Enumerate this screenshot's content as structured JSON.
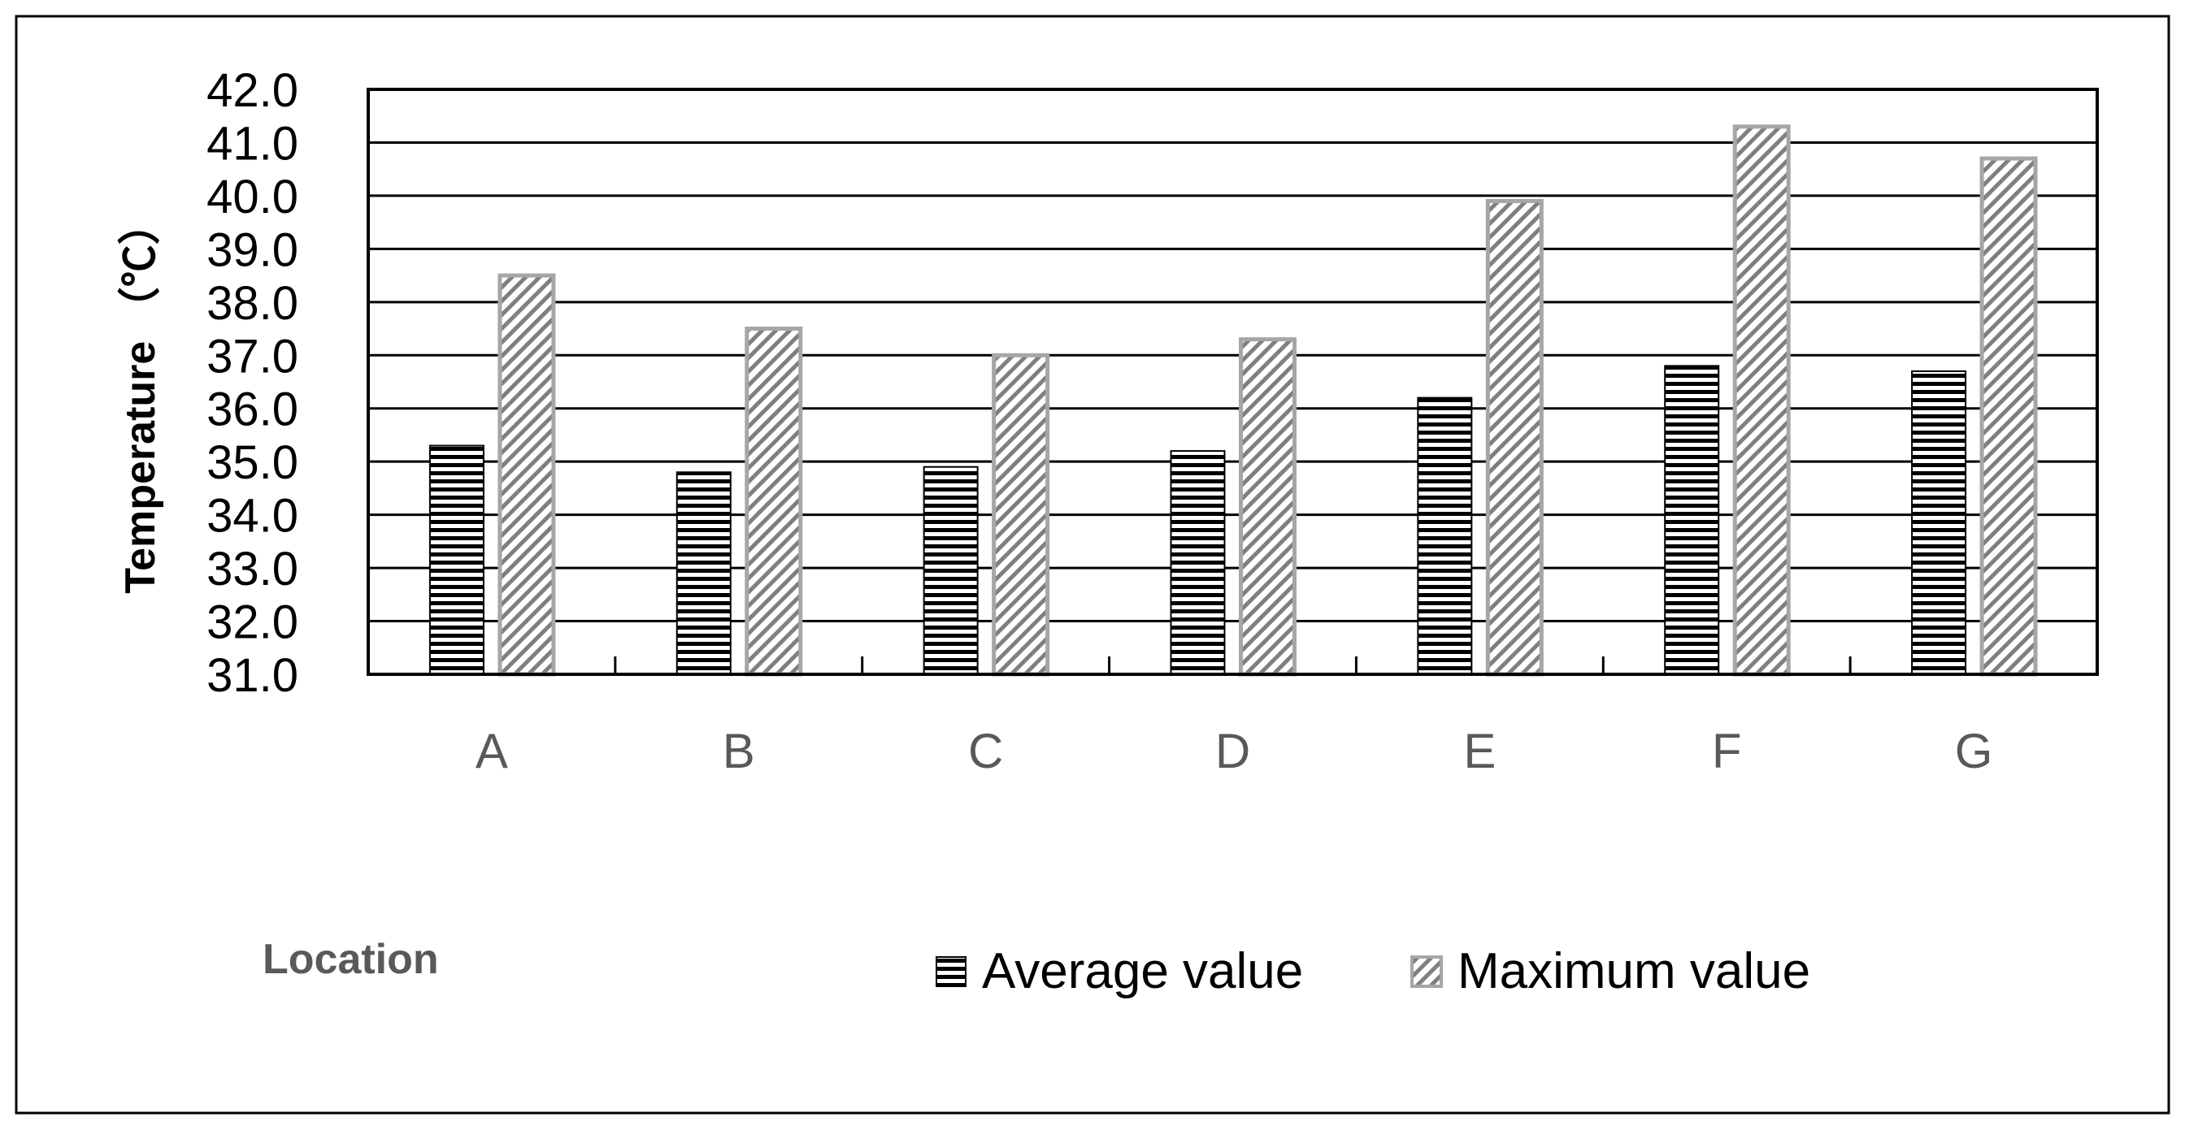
{
  "chart_data": {
    "type": "bar",
    "categories": [
      "A",
      "B",
      "C",
      "D",
      "E",
      "F",
      "G"
    ],
    "series": [
      {
        "name": "Average value",
        "values": [
          35.3,
          34.8,
          34.9,
          35.2,
          36.2,
          36.8,
          36.7
        ],
        "pattern": "horizontal-stripes",
        "color": "#000000"
      },
      {
        "name": "Maximum value",
        "values": [
          38.5,
          37.5,
          37.0,
          37.3,
          39.9,
          41.3,
          40.7
        ],
        "pattern": "diagonal-hatch",
        "color": "#a6a6a6"
      }
    ],
    "ylabel": "Temperature （℃）",
    "xlabel": "Location",
    "ylim": [
      31.0,
      42.0
    ],
    "yticks": [
      "31.0",
      "32.0",
      "33.0",
      "34.0",
      "35.0",
      "36.0",
      "37.0",
      "38.0",
      "39.0",
      "40.0",
      "41.0",
      "42.0"
    ],
    "grid": true,
    "legend_position": "bottom"
  }
}
